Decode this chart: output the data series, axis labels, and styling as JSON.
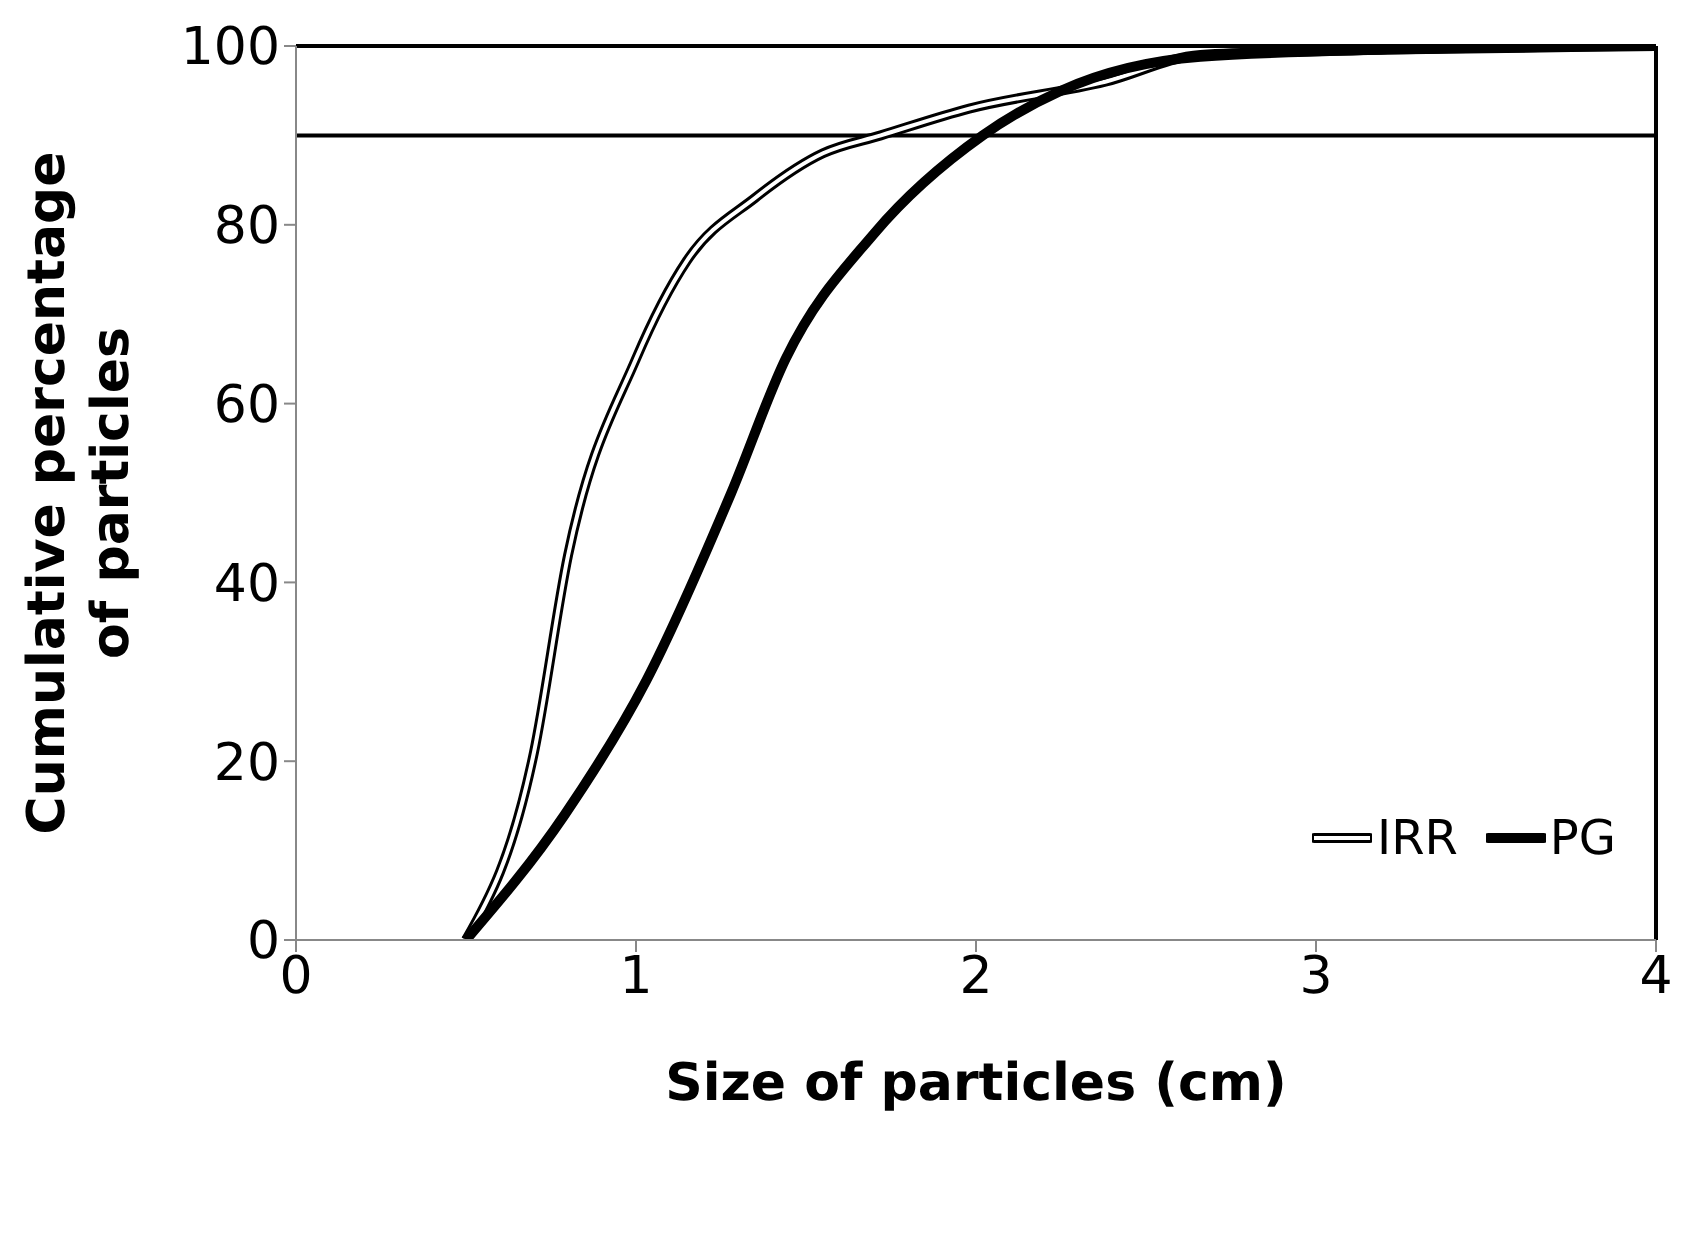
{
  "chart_data": {
    "type": "line",
    "xlabel": "Size of particles (cm)",
    "ylabel": "Cumulative percentage of particles",
    "xlim": [
      0,
      4
    ],
    "xticks": [
      0,
      1,
      2,
      3,
      4
    ],
    "ylim": [
      0,
      100
    ],
    "yticks": [
      0,
      20,
      40,
      60,
      80,
      100
    ],
    "legend": "bottom right",
    "marker": "none",
    "ref_lines": [
      {
        "axis": "y",
        "value": 90
      },
      {
        "axis": "y",
        "value": 100
      },
      {
        "axis": "x",
        "value": 4
      }
    ],
    "series": [
      {
        "name": "IRR",
        "color": "#ffffff",
        "x": [
          0.5,
          0.7,
          0.8,
          1.0,
          1.15,
          1.35,
          1.55,
          1.72,
          1.98,
          2.38,
          2.66,
          3.21,
          4
        ],
        "values": [
          0,
          21,
          43,
          65,
          76,
          83,
          88,
          90,
          93,
          96,
          99,
          99.6,
          100
        ]
      },
      {
        "name": "PG",
        "color": "#000000",
        "x": [
          0.5,
          0.79,
          1.03,
          1.28,
          1.44,
          1.7,
          2.02,
          2.25,
          2.66,
          3.21,
          4
        ],
        "values": [
          0,
          14,
          29,
          50,
          65,
          79,
          90,
          95,
          98.8,
          99.6,
          100
        ]
      }
    ]
  }
}
